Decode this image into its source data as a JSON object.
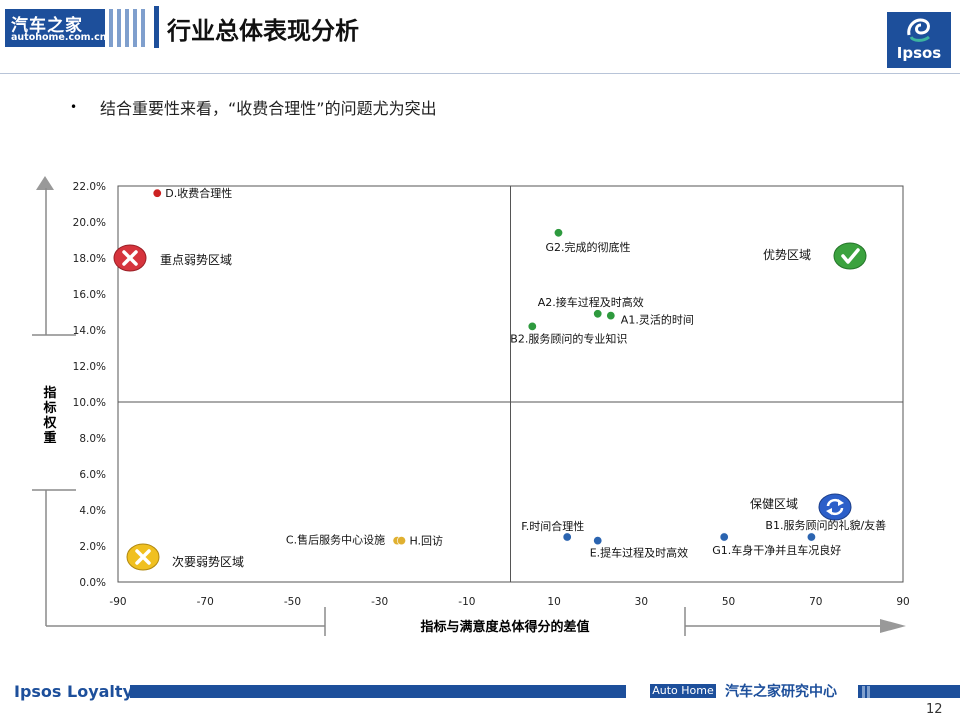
{
  "header": {
    "logo_cn": "汽车之家",
    "logo_url": "autohome.com.cn",
    "title": "行业总体表现分析",
    "ipsos_logo": "Ipsos"
  },
  "bullet": {
    "text": "结合重要性来看，“收费合理性”的问题尤为突出"
  },
  "chart_data": {
    "type": "scatter",
    "xlabel": "指标与满意度总体得分的差值",
    "ylabel": "指标权重",
    "xlim": [
      -90,
      90
    ],
    "ylim": [
      0,
      0.22
    ],
    "xticks": [
      "-90",
      "-70",
      "-50",
      "-30",
      "-10",
      "10",
      "30",
      "50",
      "70",
      "90"
    ],
    "yticks": [
      "0.0%",
      "2.0%",
      "4.0%",
      "6.0%",
      "8.0%",
      "10.0%",
      "12.0%",
      "14.0%",
      "16.0%",
      "18.0%",
      "20.0%",
      "22.0%"
    ],
    "quadrant_divider": {
      "x": 0,
      "y": 0.1
    },
    "points": [
      {
        "label": "D.收费合理性",
        "x": -81,
        "y": 0.216,
        "color": "#cc2222"
      },
      {
        "label": "G2.完成的彻底性",
        "x": 11,
        "y": 0.194,
        "color": "#2e9a3e"
      },
      {
        "label": "A2.接车过程及时高效",
        "x": 20,
        "y": 0.149,
        "color": "#2e9a3e"
      },
      {
        "label": "A1.灵活的时间",
        "x": 23,
        "y": 0.148,
        "color": "#2e9a3e"
      },
      {
        "label": "B2.服务顾问的专业知识",
        "x": 5,
        "y": 0.142,
        "color": "#2e9a3e"
      },
      {
        "label": "F.时间合理性",
        "x": 13,
        "y": 0.025,
        "color": "#2b64b0"
      },
      {
        "label": "E.提车过程及时高效",
        "x": 20,
        "y": 0.023,
        "color": "#2b64b0"
      },
      {
        "label": "G1.车身干净并且车况良好",
        "x": 49,
        "y": 0.025,
        "color": "#2b64b0"
      },
      {
        "label": "B1.服务顾问的礼貌/友善",
        "x": 69,
        "y": 0.025,
        "color": "#2b64b0"
      },
      {
        "label": "C.售后服务中心设施",
        "x": -26,
        "y": 0.023,
        "color": "#e0b030"
      },
      {
        "label": "H.回访",
        "x": -25,
        "y": 0.023,
        "color": "#e0b030"
      }
    ],
    "regions": [
      {
        "label": "重点弱势区域",
        "icon": "red-x-icon"
      },
      {
        "label": "优势区域",
        "icon": "green-check-icon"
      },
      {
        "label": "保健区域",
        "icon": "blue-refresh-icon"
      },
      {
        "label": "次要弱势区域",
        "icon": "yellow-x-icon"
      }
    ]
  },
  "footer": {
    "ipsos_loyalty": "Ipsos Loyalty",
    "auto_home": "Auto Home",
    "research_center": "汽车之家研究中心",
    "page_number": "12"
  }
}
